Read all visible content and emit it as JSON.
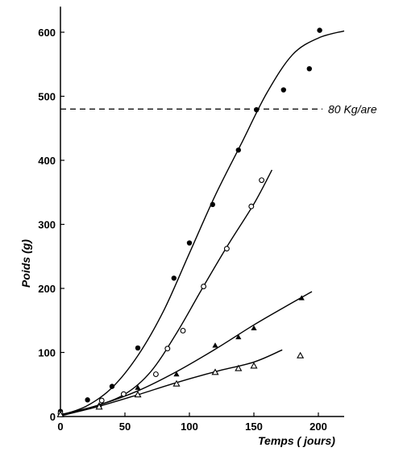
{
  "chart_data": {
    "type": "scatter",
    "title": "",
    "xlabel": "Temps ( jours)",
    "ylabel": "Poids (g)",
    "xlim": [
      0,
      220
    ],
    "ylim": [
      0,
      640
    ],
    "xticks": [
      0,
      50,
      100,
      150,
      200
    ],
    "yticks": [
      0,
      100,
      200,
      300,
      400,
      500,
      600
    ],
    "grid": false,
    "legend": "none",
    "annotations": [
      {
        "text": "80 Kg/are",
        "y": 480
      }
    ],
    "series": [
      {
        "marker": "filled-circle",
        "points": [
          [
            0,
            8
          ],
          [
            21,
            26
          ],
          [
            40,
            47
          ],
          [
            60,
            107
          ],
          [
            88,
            216
          ],
          [
            100,
            271
          ],
          [
            118,
            331
          ],
          [
            138,
            416
          ],
          [
            152,
            479
          ],
          [
            173,
            510
          ],
          [
            193,
            543
          ],
          [
            201,
            603
          ]
        ],
        "fit": [
          [
            0,
            2
          ],
          [
            20,
            16
          ],
          [
            40,
            45
          ],
          [
            60,
            95
          ],
          [
            80,
            165
          ],
          [
            100,
            255
          ],
          [
            120,
            345
          ],
          [
            140,
            425
          ],
          [
            160,
            505
          ],
          [
            180,
            565
          ],
          [
            200,
            591
          ],
          [
            220,
            602
          ]
        ]
      },
      {
        "marker": "open-circle",
        "points": [
          [
            0,
            5
          ],
          [
            32,
            25
          ],
          [
            49,
            35
          ],
          [
            74,
            66
          ],
          [
            83,
            106
          ],
          [
            95,
            134
          ],
          [
            111,
            203
          ],
          [
            129,
            262
          ],
          [
            148,
            328
          ],
          [
            156,
            369
          ]
        ],
        "fit": [
          [
            0,
            3
          ],
          [
            25,
            15
          ],
          [
            50,
            35
          ],
          [
            70,
            70
          ],
          [
            90,
            130
          ],
          [
            110,
            200
          ],
          [
            130,
            268
          ],
          [
            150,
            332
          ],
          [
            164,
            385
          ]
        ]
      },
      {
        "marker": "filled-triangle",
        "points": [
          [
            0,
            4
          ],
          [
            30,
            18
          ],
          [
            60,
            45
          ],
          [
            90,
            66
          ],
          [
            120,
            111
          ],
          [
            138,
            124
          ],
          [
            150,
            138
          ],
          [
            187,
            185
          ]
        ],
        "fit": [
          [
            0,
            2
          ],
          [
            30,
            18
          ],
          [
            60,
            40
          ],
          [
            90,
            70
          ],
          [
            120,
            105
          ],
          [
            150,
            143
          ],
          [
            180,
            178
          ],
          [
            195,
            195
          ]
        ]
      },
      {
        "marker": "open-triangle",
        "points": [
          [
            0,
            3
          ],
          [
            30,
            15
          ],
          [
            60,
            34
          ],
          [
            90,
            51
          ],
          [
            120,
            69
          ],
          [
            138,
            75
          ],
          [
            150,
            79
          ],
          [
            186,
            95
          ]
        ],
        "fit": [
          [
            0,
            1
          ],
          [
            30,
            16
          ],
          [
            60,
            34
          ],
          [
            90,
            53
          ],
          [
            120,
            70
          ],
          [
            150,
            85
          ],
          [
            172,
            104
          ]
        ]
      }
    ]
  }
}
